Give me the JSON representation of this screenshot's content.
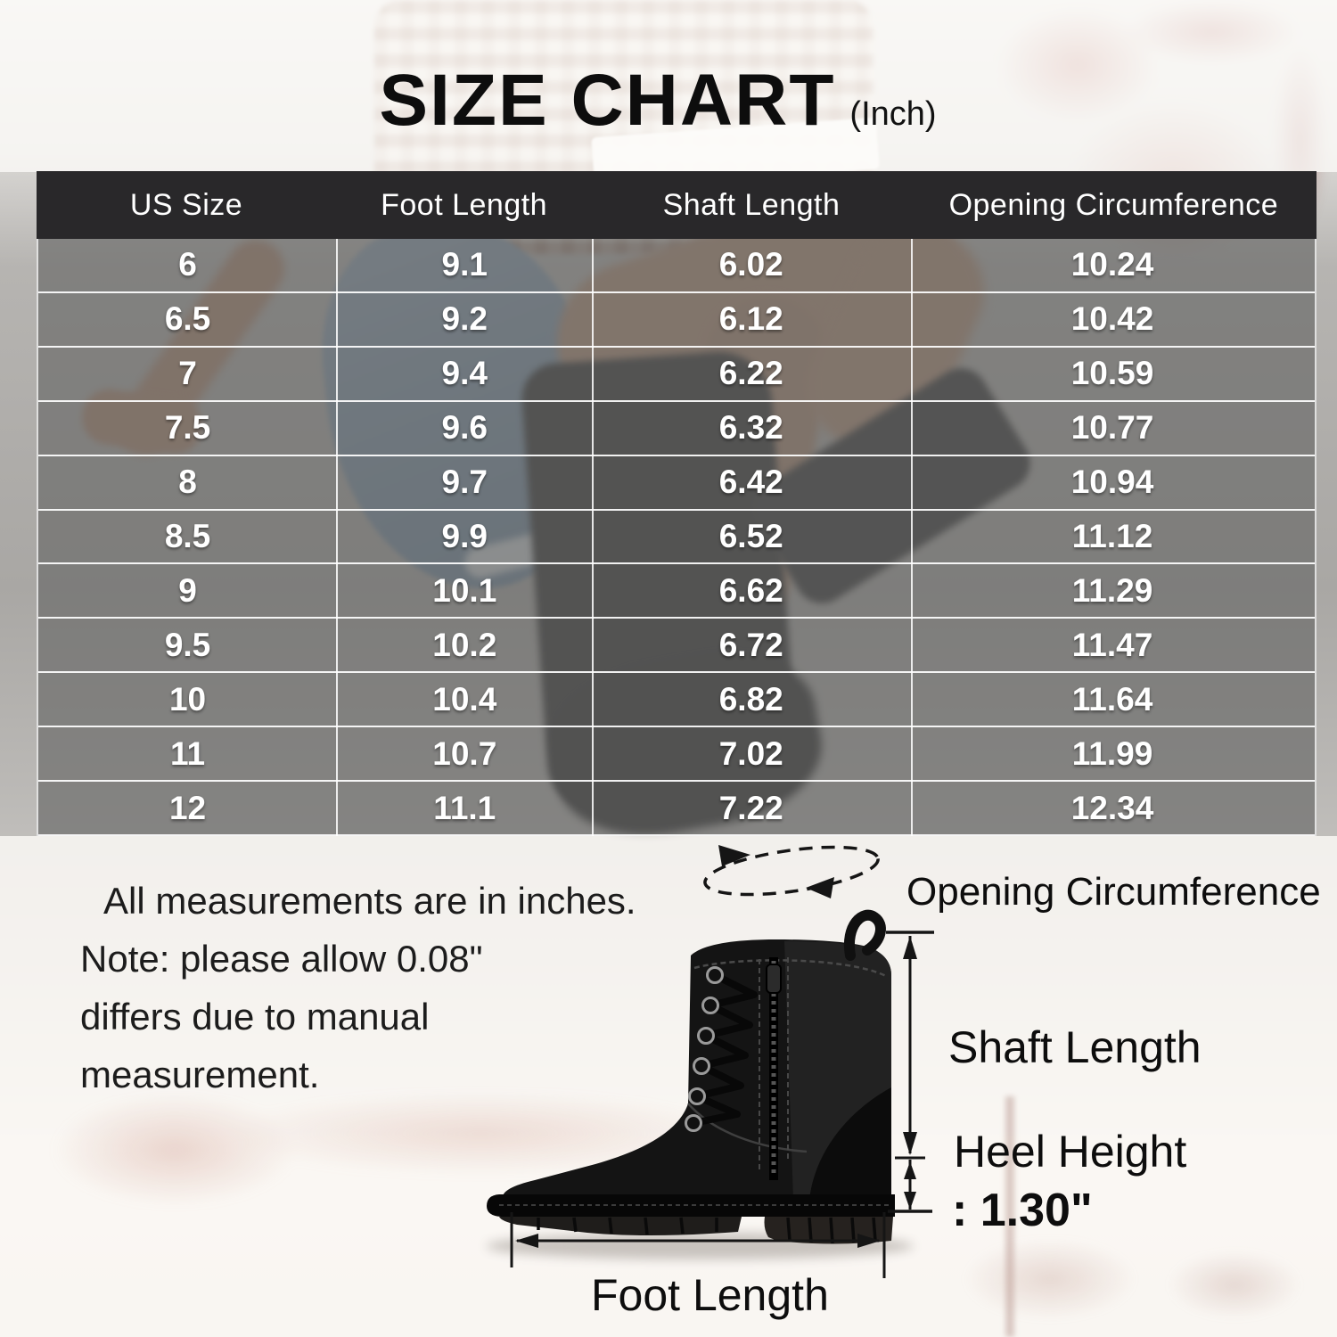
{
  "title": {
    "main": "SIZE CHART",
    "unit": "(Inch)"
  },
  "table": {
    "headers": [
      "US Size",
      "Foot Length",
      "Shaft Length",
      "Opening Circumference"
    ],
    "rows": [
      [
        "6",
        "9.1",
        "6.02",
        "10.24"
      ],
      [
        "6.5",
        "9.2",
        "6.12",
        "10.42"
      ],
      [
        "7",
        "9.4",
        "6.22",
        "10.59"
      ],
      [
        "7.5",
        "9.6",
        "6.32",
        "10.77"
      ],
      [
        "8",
        "9.7",
        "6.42",
        "10.94"
      ],
      [
        "8.5",
        "9.9",
        "6.52",
        "11.12"
      ],
      [
        "9",
        "10.1",
        "6.62",
        "11.29"
      ],
      [
        "9.5",
        "10.2",
        "6.72",
        "11.47"
      ],
      [
        "10",
        "10.4",
        "6.82",
        "11.64"
      ],
      [
        "11",
        "10.7",
        "7.02",
        "11.99"
      ],
      [
        "12",
        "11.1",
        "7.22",
        "12.34"
      ]
    ]
  },
  "chart_data": {
    "type": "table",
    "title": "SIZE CHART (Inch)",
    "units": "inches",
    "columns": [
      "US Size",
      "Foot Length",
      "Shaft Length",
      "Opening Circumference"
    ],
    "rows": [
      [
        6,
        9.1,
        6.02,
        10.24
      ],
      [
        6.5,
        9.2,
        6.12,
        10.42
      ],
      [
        7,
        9.4,
        6.22,
        10.59
      ],
      [
        7.5,
        9.6,
        6.32,
        10.77
      ],
      [
        8,
        9.7,
        6.42,
        10.94
      ],
      [
        8.5,
        9.9,
        6.52,
        11.12
      ],
      [
        9,
        10.1,
        6.62,
        11.29
      ],
      [
        9.5,
        10.2,
        6.72,
        11.47
      ],
      [
        10,
        10.4,
        6.82,
        11.64
      ],
      [
        11,
        10.7,
        7.02,
        11.99
      ],
      [
        12,
        11.1,
        7.22,
        12.34
      ]
    ],
    "heel_height_in": 1.3
  },
  "note": {
    "lines": [
      "All measurements are in inches.",
      "Note: please allow 0.08\"",
      "differs due to manual",
      "measurement."
    ]
  },
  "diagram": {
    "opening_circumference_label": "Opening Circumference",
    "shaft_length_label": "Shaft Length",
    "heel_height_label": "Heel Height",
    "heel_height_value": ": 1.30\"",
    "foot_length_label": "Foot Length"
  },
  "colors": {
    "header_bg": "#29282a",
    "table_text": "#ffffff",
    "title_text": "#0d0d0d",
    "annotation_text": "#0d0d0d",
    "leaves_accent": "#a43e32"
  }
}
